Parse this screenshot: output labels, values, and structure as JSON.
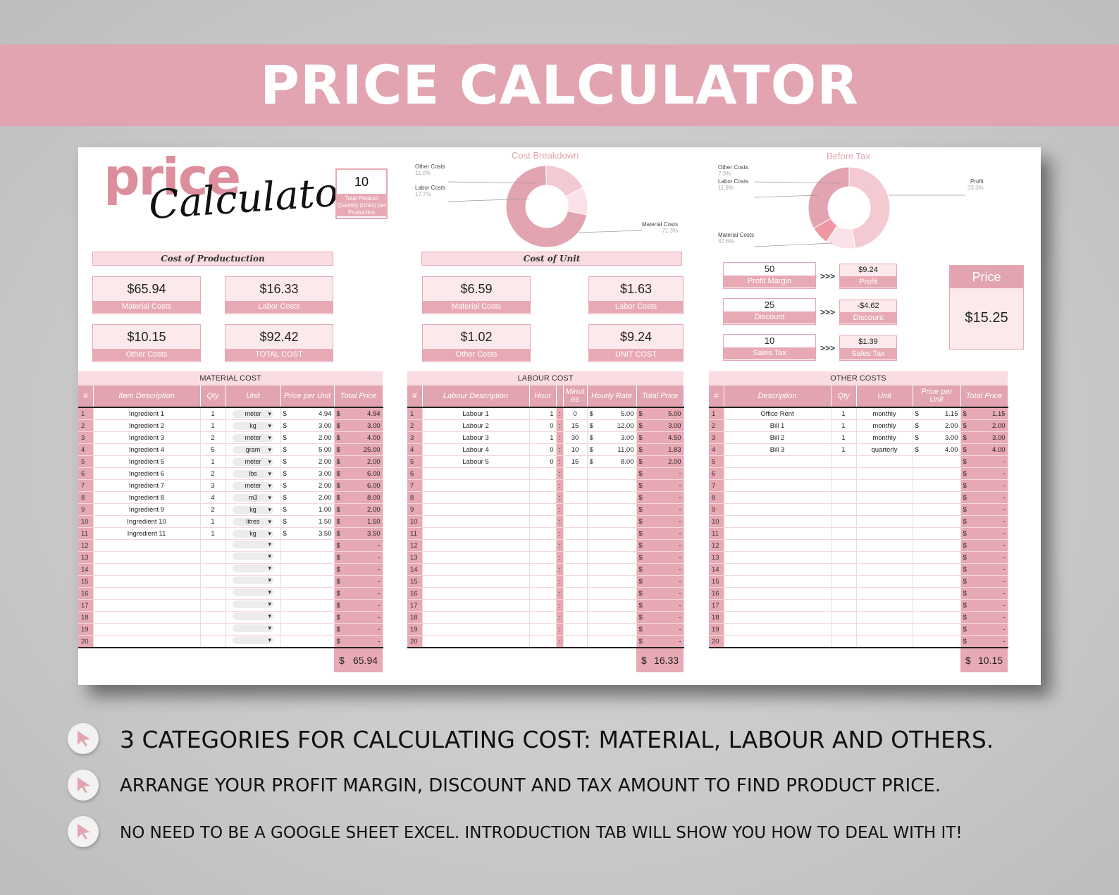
{
  "banner": {
    "title": "PRICE CALCULATOR"
  },
  "logo": {
    "word1": "price",
    "word2": "Calculator"
  },
  "quantity": {
    "value": "10",
    "label": "Total Product Quantity (Units) per Production"
  },
  "cost_of_production": {
    "title": "Cost of Productuction",
    "cards": [
      {
        "value": "$65.94",
        "label": "Material Costs"
      },
      {
        "value": "$16.33",
        "label": "Labor Costs"
      },
      {
        "value": "$10.15",
        "label": "Other Costs"
      },
      {
        "value": "$92.42",
        "label": "TOTAL COST"
      }
    ]
  },
  "cost_of_unit": {
    "title": "Cost of Unit",
    "cards": [
      {
        "value": "$6.59",
        "label": "Material Costs"
      },
      {
        "value": "$1.63",
        "label": "Labor Costs"
      },
      {
        "value": "$1.02",
        "label": "Other Costs"
      },
      {
        "value": "$9.24",
        "label": "UNIT COST"
      }
    ]
  },
  "pricing": {
    "arrows": ">>>",
    "inputs": [
      {
        "value": "50",
        "label": "Profit Margin",
        "result_value": "$9.24",
        "result_label": "Profit"
      },
      {
        "value": "25",
        "label": "Discount",
        "result_value": "-$4.62",
        "result_label": "Discount"
      },
      {
        "value": "10",
        "label": "Sales Tax",
        "result_value": "$1.39",
        "result_label": "Sales Tax"
      }
    ],
    "price_label": "Price",
    "price_value": "$15.25"
  },
  "chart_data": [
    {
      "type": "pie",
      "title": "Cost Breakdown",
      "labels": [
        "Material Costs",
        "Labor Costs",
        "Other Costs"
      ],
      "values": [
        71.3,
        17.7,
        11.0
      ],
      "value_labels": [
        "71.3%",
        "17.7%",
        "11.0%"
      ],
      "colors": [
        "#e2a4b0",
        "#f3cad2",
        "#fae3e8"
      ]
    },
    {
      "type": "pie",
      "title": "Before Tax",
      "labels": [
        "Material Costs",
        "Labor Costs",
        "Other Costs",
        "Profit"
      ],
      "values": [
        47.6,
        11.8,
        7.3,
        33.3
      ],
      "value_labels": [
        "47.6%",
        "11.8%",
        "7.3%",
        "33.3%"
      ],
      "colors": [
        "#f3cad2",
        "#fae3e8",
        "#ee98a4",
        "#e2a4b0"
      ]
    }
  ],
  "material_cost": {
    "caption": "MATERIAL COST",
    "headers": [
      "#",
      "Item Description",
      "Qty",
      "Unit",
      "Price per Unit",
      "Total Price"
    ],
    "rows": [
      {
        "n": "1",
        "desc": "Ingredient 1",
        "qty": "1",
        "unit": "meter",
        "ppu": "4.94",
        "total": "4.94"
      },
      {
        "n": "2",
        "desc": "Ingredient 2",
        "qty": "1",
        "unit": "kg",
        "ppu": "3.00",
        "total": "3.00"
      },
      {
        "n": "3",
        "desc": "Ingredient 3",
        "qty": "2",
        "unit": "meter",
        "ppu": "2.00",
        "total": "4.00"
      },
      {
        "n": "4",
        "desc": "Ingredient 4",
        "qty": "5",
        "unit": "gram",
        "ppu": "5.00",
        "total": "25.00"
      },
      {
        "n": "5",
        "desc": "Ingredient 5",
        "qty": "1",
        "unit": "meter",
        "ppu": "2.00",
        "total": "2.00"
      },
      {
        "n": "6",
        "desc": "Ingredient 6",
        "qty": "2",
        "unit": "lbs",
        "ppu": "3.00",
        "total": "6.00"
      },
      {
        "n": "7",
        "desc": "Ingredient 7",
        "qty": "3",
        "unit": "meter",
        "ppu": "2.00",
        "total": "6.00"
      },
      {
        "n": "8",
        "desc": "Ingredient 8",
        "qty": "4",
        "unit": "m3",
        "ppu": "2.00",
        "total": "8.00"
      },
      {
        "n": "9",
        "desc": "Ingredient 9",
        "qty": "2",
        "unit": "kg",
        "ppu": "1.00",
        "total": "2.00"
      },
      {
        "n": "10",
        "desc": "Ingredient 10",
        "qty": "1",
        "unit": "litres",
        "ppu": "1.50",
        "total": "1.50"
      },
      {
        "n": "11",
        "desc": "Ingredient 11",
        "qty": "1",
        "unit": "kg",
        "ppu": "3.50",
        "total": "3.50"
      },
      {
        "n": "12",
        "desc": "",
        "qty": "",
        "unit": "",
        "ppu": "",
        "total": "-"
      },
      {
        "n": "13",
        "desc": "",
        "qty": "",
        "unit": "",
        "ppu": "",
        "total": "-"
      },
      {
        "n": "14",
        "desc": "",
        "qty": "",
        "unit": "",
        "ppu": "",
        "total": "-"
      },
      {
        "n": "15",
        "desc": "",
        "qty": "",
        "unit": "",
        "ppu": "",
        "total": "-"
      },
      {
        "n": "16",
        "desc": "",
        "qty": "",
        "unit": "",
        "ppu": "",
        "total": "-"
      },
      {
        "n": "17",
        "desc": "",
        "qty": "",
        "unit": "",
        "ppu": "",
        "total": "-"
      },
      {
        "n": "18",
        "desc": "",
        "qty": "",
        "unit": "",
        "ppu": "",
        "total": "-"
      },
      {
        "n": "19",
        "desc": "",
        "qty": "",
        "unit": "",
        "ppu": "",
        "total": "-"
      },
      {
        "n": "20",
        "desc": "",
        "qty": "",
        "unit": "",
        "ppu": "",
        "total": "-"
      }
    ],
    "currency": "$",
    "total": "65.94"
  },
  "labour_cost": {
    "caption": "LABOUR COST",
    "headers": [
      "#",
      "Labour Description",
      "Hour",
      "",
      "Minutes",
      "Hourly Rate",
      "Total Price"
    ],
    "rows": [
      {
        "n": "1",
        "desc": "Labour 1",
        "hour": "1",
        "min": "0",
        "rate": "5.00",
        "total": "5.00"
      },
      {
        "n": "2",
        "desc": "Labour 2",
        "hour": "0",
        "min": "15",
        "rate": "12.00",
        "total": "3.00"
      },
      {
        "n": "3",
        "desc": "Labour 3",
        "hour": "1",
        "min": "30",
        "rate": "3.00",
        "total": "4.50"
      },
      {
        "n": "4",
        "desc": "Labour 4",
        "hour": "0",
        "min": "10",
        "rate": "11.00",
        "total": "1.83"
      },
      {
        "n": "5",
        "desc": "Labour 5",
        "hour": "0",
        "min": "15",
        "rate": "8.00",
        "total": "2.00"
      },
      {
        "n": "6",
        "desc": "",
        "hour": "",
        "min": "",
        "rate": "",
        "total": "-"
      },
      {
        "n": "7",
        "desc": "",
        "hour": "",
        "min": "",
        "rate": "",
        "total": "-"
      },
      {
        "n": "8",
        "desc": "",
        "hour": "",
        "min": "",
        "rate": "",
        "total": "-"
      },
      {
        "n": "9",
        "desc": "",
        "hour": "",
        "min": "",
        "rate": "",
        "total": "-"
      },
      {
        "n": "10",
        "desc": "",
        "hour": "",
        "min": "",
        "rate": "",
        "total": "-"
      },
      {
        "n": "11",
        "desc": "",
        "hour": "",
        "min": "",
        "rate": "",
        "total": "-"
      },
      {
        "n": "12",
        "desc": "",
        "hour": "",
        "min": "",
        "rate": "",
        "total": "-"
      },
      {
        "n": "13",
        "desc": "",
        "hour": "",
        "min": "",
        "rate": "",
        "total": "-"
      },
      {
        "n": "14",
        "desc": "",
        "hour": "",
        "min": "",
        "rate": "",
        "total": "-"
      },
      {
        "n": "15",
        "desc": "",
        "hour": "",
        "min": "",
        "rate": "",
        "total": "-"
      },
      {
        "n": "16",
        "desc": "",
        "hour": "",
        "min": "",
        "rate": "",
        "total": "-"
      },
      {
        "n": "17",
        "desc": "",
        "hour": "",
        "min": "",
        "rate": "",
        "total": "-"
      },
      {
        "n": "18",
        "desc": "",
        "hour": "",
        "min": "",
        "rate": "",
        "total": "-"
      },
      {
        "n": "19",
        "desc": "",
        "hour": "",
        "min": "",
        "rate": "",
        "total": "-"
      },
      {
        "n": "20",
        "desc": "",
        "hour": "",
        "min": "",
        "rate": "",
        "total": "-"
      }
    ],
    "currency": "$",
    "total": "16.33"
  },
  "other_costs": {
    "caption": "OTHER COSTS",
    "headers": [
      "#",
      "Description",
      "Qty",
      "Unit",
      "Price per Unit",
      "Total Price"
    ],
    "rows": [
      {
        "n": "1",
        "desc": "Office Rent",
        "qty": "1",
        "unit": "monthly",
        "ppu": "1.15",
        "total": "1.15"
      },
      {
        "n": "2",
        "desc": "Bill 1",
        "qty": "1",
        "unit": "monthly",
        "ppu": "2.00",
        "total": "2.00"
      },
      {
        "n": "3",
        "desc": "Bill 2",
        "qty": "1",
        "unit": "monthly",
        "ppu": "3.00",
        "total": "3.00"
      },
      {
        "n": "4",
        "desc": "Bill 3",
        "qty": "1",
        "unit": "quarterly",
        "ppu": "4.00",
        "total": "4.00"
      },
      {
        "n": "5",
        "desc": "",
        "qty": "",
        "unit": "",
        "ppu": "",
        "total": "-"
      },
      {
        "n": "6",
        "desc": "",
        "qty": "",
        "unit": "",
        "ppu": "",
        "total": "-"
      },
      {
        "n": "7",
        "desc": "",
        "qty": "",
        "unit": "",
        "ppu": "",
        "total": "-"
      },
      {
        "n": "8",
        "desc": "",
        "qty": "",
        "unit": "",
        "ppu": "",
        "total": "-"
      },
      {
        "n": "9",
        "desc": "",
        "qty": "",
        "unit": "",
        "ppu": "",
        "total": "-"
      },
      {
        "n": "10",
        "desc": "",
        "qty": "",
        "unit": "",
        "ppu": "",
        "total": "-"
      },
      {
        "n": "11",
        "desc": "",
        "qty": "",
        "unit": "",
        "ppu": "",
        "total": "-"
      },
      {
        "n": "12",
        "desc": "",
        "qty": "",
        "unit": "",
        "ppu": "",
        "total": "-"
      },
      {
        "n": "13",
        "desc": "",
        "qty": "",
        "unit": "",
        "ppu": "",
        "total": "-"
      },
      {
        "n": "14",
        "desc": "",
        "qty": "",
        "unit": "",
        "ppu": "",
        "total": "-"
      },
      {
        "n": "15",
        "desc": "",
        "qty": "",
        "unit": "",
        "ppu": "",
        "total": "-"
      },
      {
        "n": "16",
        "desc": "",
        "qty": "",
        "unit": "",
        "ppu": "",
        "total": "-"
      },
      {
        "n": "17",
        "desc": "",
        "qty": "",
        "unit": "",
        "ppu": "",
        "total": "-"
      },
      {
        "n": "18",
        "desc": "",
        "qty": "",
        "unit": "",
        "ppu": "",
        "total": "-"
      },
      {
        "n": "19",
        "desc": "",
        "qty": "",
        "unit": "",
        "ppu": "",
        "total": "-"
      },
      {
        "n": "20",
        "desc": "",
        "qty": "",
        "unit": "",
        "ppu": "",
        "total": "-"
      }
    ],
    "currency": "$",
    "total": "10.15"
  },
  "bullets": [
    {
      "icon": "cursor-icon",
      "text": "3 CATEGORIES FOR CALCULATING COST: MATERIAL, LABOUR AND OTHERS."
    },
    {
      "icon": "cursor-icon",
      "text": "ARRANGE YOUR PROFIT MARGIN, DISCOUNT AND TAX AMOUNT TO FIND PRODUCT PRICE."
    },
    {
      "icon": "cursor-icon",
      "text": "NO NEED TO BE A GOOGLE SHEET EXCEL. INTRODUCTION TAB WILL SHOW YOU HOW TO DEAL WITH IT!"
    }
  ],
  "colors": {
    "accent": "#e2a4b0",
    "accent_light": "#f9dde2",
    "card_bg": "#fbe9ec"
  }
}
